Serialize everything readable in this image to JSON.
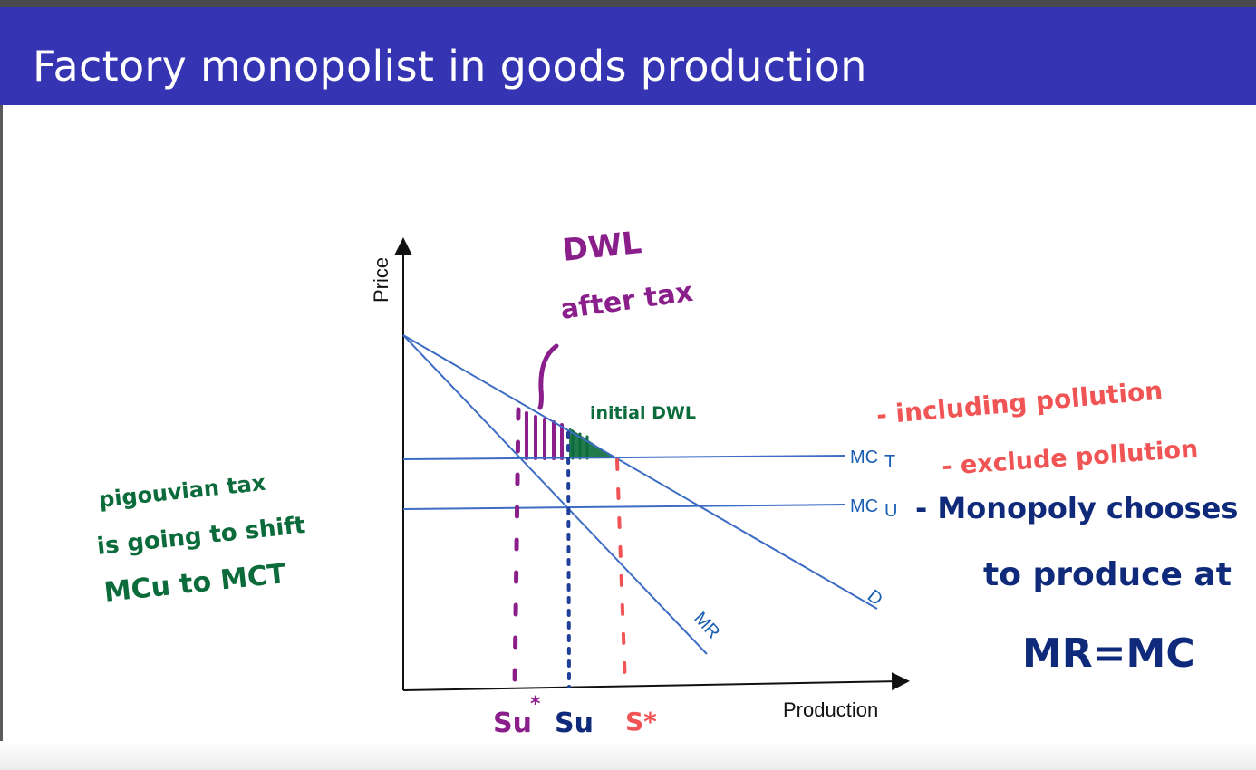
{
  "slide": {
    "title": "Factory monopolist in goods production"
  },
  "axes": {
    "y_label": "Price",
    "x_label": "Production"
  },
  "curves": {
    "mc_t_label": "MC",
    "mc_t_sub": "T",
    "mc_u_label": "MC",
    "mc_u_sub": "U",
    "demand_label": "D",
    "mr_label": "MR"
  },
  "annotations": {
    "dwl_line1": "DWL",
    "dwl_line2": "after tax",
    "initial_dwl": "initial DWL",
    "left_note_1": "pigouvian tax",
    "left_note_2": "is going to shift",
    "left_note_3": "MCu to MCT",
    "including_pollution": "- including pollution",
    "exclude_pollution": "- exclude pollution",
    "monopoly_1": "- Monopoly chooses",
    "monopoly_2": "to produce at",
    "monopoly_3": "MR=MC"
  },
  "x_marks": {
    "su_star": "Su",
    "su_star_sup": "*",
    "su": "Su",
    "s_star": "S*"
  },
  "colors": {
    "title_bar": "#3535b3",
    "curve_blue": "#3d6cc4",
    "hand_purple": "#8a1f8c",
    "hand_green": "#0b6b3a",
    "hand_red": "#f05454",
    "hand_navy": "#0f2a7a"
  }
}
